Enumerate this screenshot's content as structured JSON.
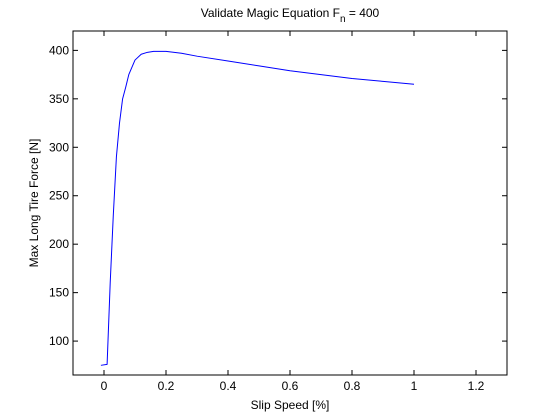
{
  "chart_data": {
    "type": "line",
    "title": {
      "prefix": "Validate Magic Equation F",
      "subscript": "n",
      "suffix": " = 400"
    },
    "xlabel": "Slip Speed [%]",
    "ylabel": "Max Long Tire Force [N]",
    "xlim": [
      -0.1,
      1.3
    ],
    "ylim": [
      65,
      420
    ],
    "xticks": [
      0,
      0.2,
      0.4,
      0.6,
      0.8,
      1,
      1.2
    ],
    "xtick_labels": [
      "0",
      "0.2",
      "0.4",
      "0.6",
      "0.8",
      "1",
      "1.2"
    ],
    "yticks": [
      100,
      150,
      200,
      250,
      300,
      350,
      400
    ],
    "ytick_labels": [
      "100",
      "150",
      "200",
      "250",
      "300",
      "350",
      "400"
    ],
    "grid": false,
    "series": [
      {
        "color": "#0000ff",
        "x": [
          -0.01,
          0.01,
          0.02,
          0.03,
          0.04,
          0.05,
          0.06,
          0.07,
          0.08,
          0.1,
          0.12,
          0.14,
          0.16,
          0.18,
          0.2,
          0.25,
          0.3,
          0.4,
          0.5,
          0.6,
          0.7,
          0.8,
          0.9,
          1.0
        ],
        "y": [
          75,
          76,
          160,
          230,
          290,
          325,
          350,
          362,
          375,
          390,
          396,
          398,
          399,
          399,
          399,
          397,
          394,
          389,
          384,
          379,
          375,
          371,
          368,
          365
        ]
      }
    ]
  }
}
